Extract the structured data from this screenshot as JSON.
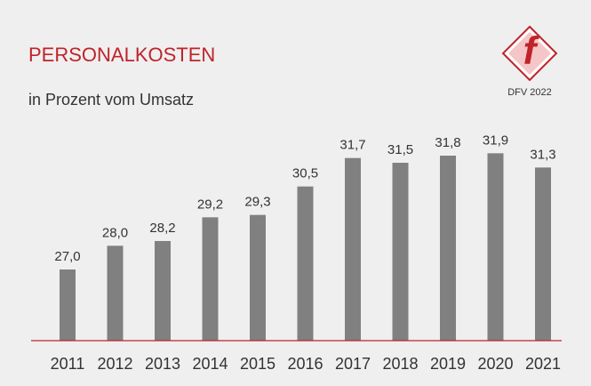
{
  "chart_data": {
    "type": "bar",
    "title": "PERSONALKOSTEN",
    "subtitle": "in Prozent vom Umsatz",
    "logo_text": "f",
    "annotation": "DFV 2022",
    "categories": [
      "2011",
      "2012",
      "2013",
      "2014",
      "2015",
      "2016",
      "2017",
      "2018",
      "2019",
      "2020",
      "2021"
    ],
    "values": [
      27.0,
      28.0,
      28.2,
      29.2,
      29.3,
      30.5,
      31.7,
      31.5,
      31.8,
      31.9,
      31.3
    ],
    "value_labels": [
      "27,0",
      "28,0",
      "28,2",
      "29,2",
      "29,3",
      "30,5",
      "31,7",
      "31,5",
      "31,8",
      "31,9",
      "31,3"
    ],
    "color": "#808080",
    "ylim": [
      24,
      33
    ]
  }
}
